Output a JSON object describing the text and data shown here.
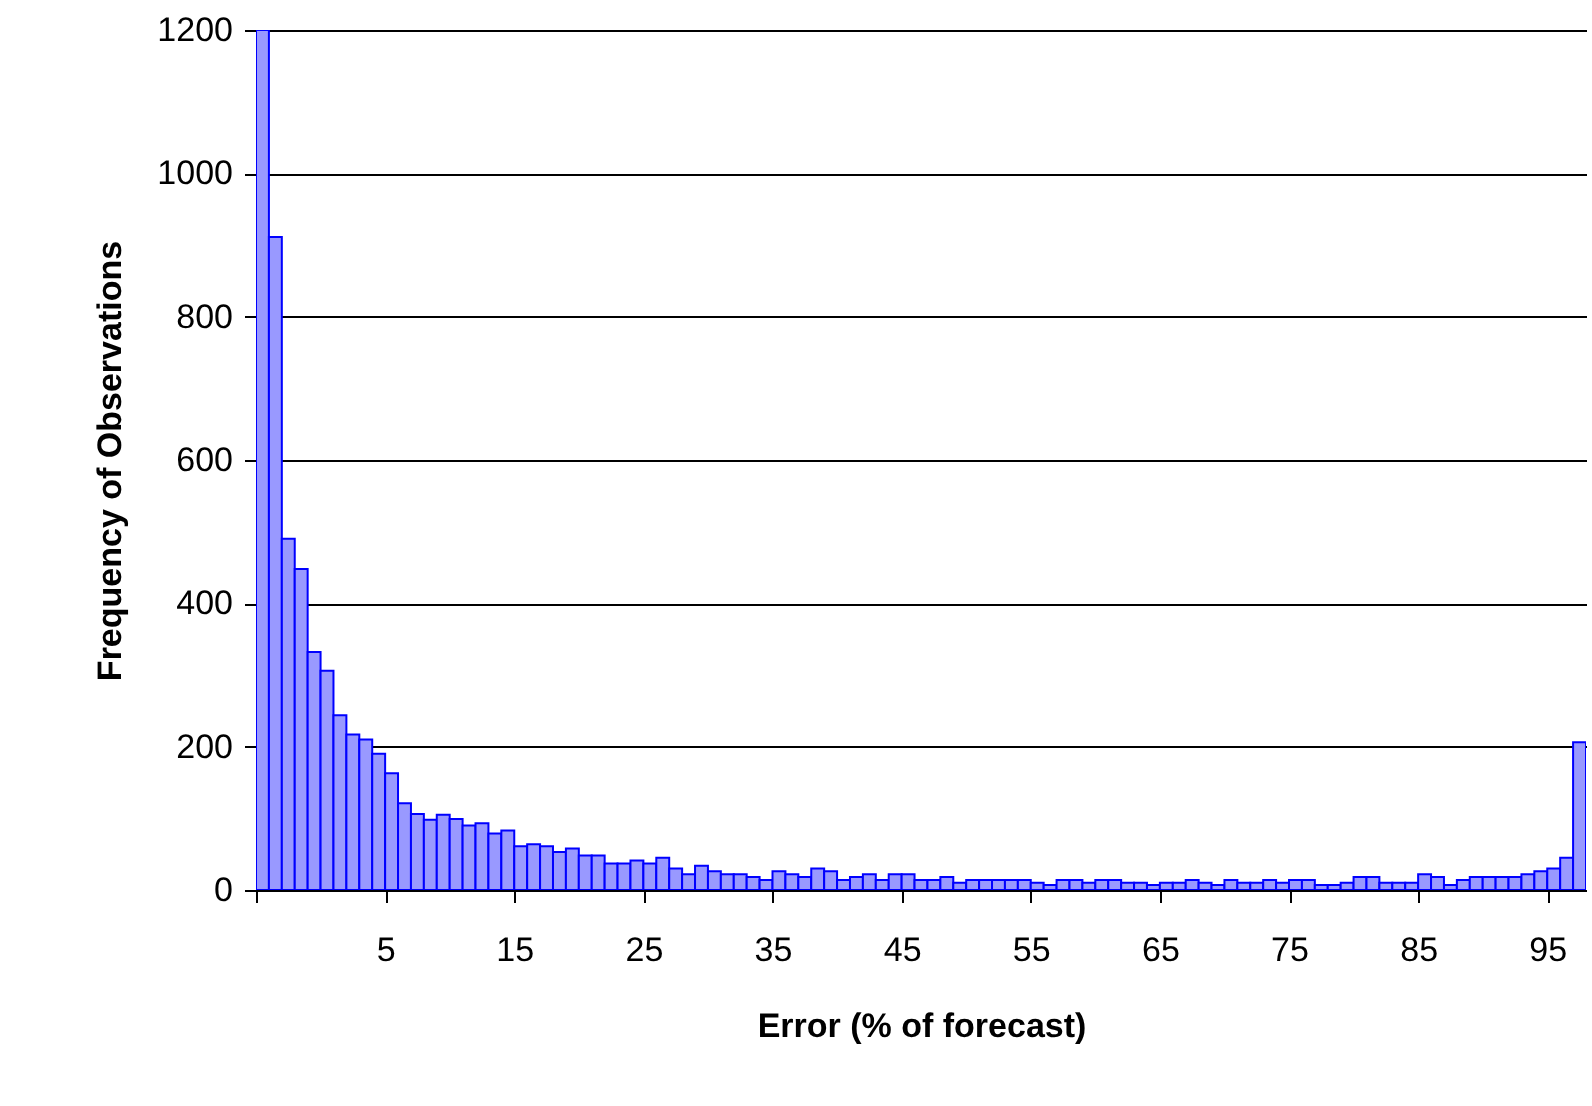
{
  "chart_data": {
    "type": "histogram",
    "xlabel": "Error (% of forecast)",
    "ylabel": "Frequency of Observations",
    "bins": [
      -5,
      -4,
      -3,
      -2,
      -1,
      0,
      1,
      2,
      3,
      4,
      5,
      6,
      7,
      8,
      9,
      10,
      11,
      12,
      13,
      14,
      15,
      16,
      17,
      18,
      19,
      20,
      21,
      22,
      23,
      24,
      25,
      26,
      27,
      28,
      29,
      30,
      31,
      32,
      33,
      34,
      35,
      36,
      37,
      38,
      39,
      40,
      41,
      42,
      43,
      44,
      45,
      46,
      47,
      48,
      49,
      50,
      51,
      52,
      53,
      54,
      55,
      56,
      57,
      58,
      59,
      60,
      61,
      62,
      63,
      64,
      65,
      66,
      67,
      68,
      69,
      70,
      71,
      72,
      73,
      74,
      75,
      76,
      77,
      78,
      79,
      80,
      81,
      82,
      83,
      84,
      85,
      86,
      87,
      88,
      89,
      90,
      91,
      92,
      93,
      94,
      95,
      96,
      97,
      98
    ],
    "values": [
      1200,
      911,
      490,
      448,
      332,
      306,
      244,
      217,
      210,
      190,
      163,
      121,
      106,
      98,
      105,
      99,
      90,
      93,
      79,
      83,
      61,
      64,
      61,
      53,
      58,
      48,
      48,
      37,
      37,
      41,
      37,
      45,
      30,
      22,
      34,
      26,
      22,
      22,
      18,
      14,
      26,
      22,
      18,
      30,
      26,
      14,
      18,
      22,
      14,
      22,
      22,
      14,
      14,
      18,
      10,
      14,
      14,
      14,
      14,
      14,
      10,
      7,
      14,
      14,
      10,
      14,
      14,
      10,
      10,
      7,
      10,
      10,
      14,
      10,
      7,
      14,
      10,
      10,
      14,
      10,
      14,
      14,
      7,
      7,
      10,
      18,
      18,
      10,
      10,
      10,
      22,
      18,
      7,
      14,
      18,
      18,
      18,
      18,
      22,
      26,
      30,
      45,
      206
    ],
    "color": "#9999ff",
    "xlim": [
      -5,
      98
    ],
    "xticks": [
      {
        "value": -5,
        "label": null
      },
      5,
      15,
      25,
      35,
      45,
      55,
      65,
      75,
      85,
      95
    ],
    "ylim": [
      0,
      1200
    ],
    "yticks": [
      0,
      200,
      400,
      600,
      800,
      1000,
      1200
    ],
    "grid": "y"
  }
}
